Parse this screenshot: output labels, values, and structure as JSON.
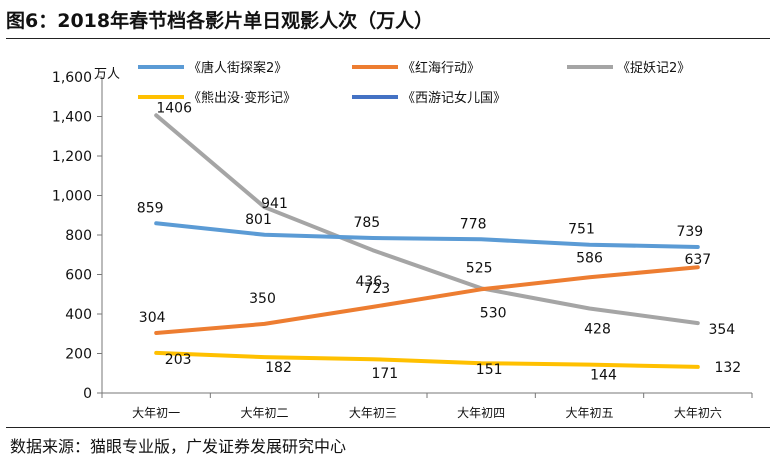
{
  "title": "图6：2018年春节档各影片单日观影人次（万人）",
  "source": "数据来源：猫眼专业版，广发证券发展研究中心",
  "chart_data": {
    "type": "line",
    "ylabel": "万人",
    "ylim": [
      0,
      1600
    ],
    "yticks": [
      0,
      200,
      400,
      600,
      800,
      1000,
      1200,
      1400,
      1600
    ],
    "ytick_labels": [
      "0",
      "200",
      "400",
      "600",
      "800",
      "1,000",
      "1,200",
      "1,400",
      "1,600"
    ],
    "categories": [
      "大年初一",
      "大年初二",
      "大年初三",
      "大年初四",
      "大年初五",
      "大年初六"
    ],
    "legend_position": "top",
    "series": [
      {
        "name": "《唐人街探案2》",
        "color": "#5b9bd5",
        "values": [
          859,
          801,
          785,
          778,
          751,
          739
        ]
      },
      {
        "name": "《红海行动》",
        "color": "#ed7d31",
        "values": [
          304,
          350,
          436,
          525,
          586,
          637
        ]
      },
      {
        "name": "《捉妖记2》",
        "color": "#a5a5a5",
        "values": [
          1406,
          941,
          723,
          530,
          428,
          354
        ]
      },
      {
        "name": "《熊出没·变形记》",
        "color": "#ffc000",
        "values": [
          203,
          182,
          171,
          151,
          144,
          132
        ]
      },
      {
        "name": "《西游记女儿国》",
        "color": "#4472c4",
        "values": [
          null,
          null,
          null,
          null,
          null,
          null
        ]
      }
    ]
  }
}
